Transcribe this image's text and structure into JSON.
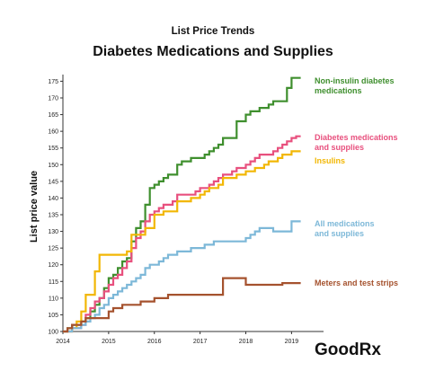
{
  "chart_data": {
    "type": "line",
    "subtitle": "List Price Trends",
    "title": "Diabetes Medications and Supplies",
    "ylabel": "List price value",
    "xlabel": "",
    "xlim": [
      2014.0,
      2019.7
    ],
    "ylim": [
      100,
      177
    ],
    "x_ticks": [
      "2014",
      "2015",
      "2016",
      "2017",
      "2018",
      "2019"
    ],
    "y_ticks": [
      "100",
      "105",
      "110",
      "115",
      "120",
      "125",
      "130",
      "135",
      "140",
      "145",
      "150",
      "155",
      "160",
      "165",
      "170",
      "175"
    ],
    "grid": false,
    "legend": "right-side inline labels",
    "series": [
      {
        "name": "Non-insulin diabetes\nmedications",
        "color": "#3f8f2e",
        "x": [
          2014.0,
          2014.1,
          2014.2,
          2014.3,
          2014.4,
          2014.5,
          2014.6,
          2014.7,
          2014.8,
          2014.9,
          2015.0,
          2015.1,
          2015.2,
          2015.3,
          2015.4,
          2015.5,
          2015.6,
          2015.7,
          2015.8,
          2015.9,
          2016.0,
          2016.1,
          2016.2,
          2016.3,
          2016.4,
          2016.5,
          2016.6,
          2016.7,
          2016.8,
          2016.9,
          2017.0,
          2017.1,
          2017.2,
          2017.3,
          2017.4,
          2017.5,
          2017.6,
          2017.7,
          2017.8,
          2017.9,
          2018.0,
          2018.1,
          2018.2,
          2018.3,
          2018.4,
          2018.5,
          2018.6,
          2018.7,
          2018.8,
          2018.9,
          2019.0,
          2019.1,
          2019.2
        ],
        "values": [
          100.0,
          101.0,
          102.0,
          102.0,
          103.0,
          104.0,
          106.0,
          108.0,
          110.0,
          113.0,
          116.0,
          117.0,
          119.0,
          121.0,
          122.0,
          127.0,
          131.0,
          133.0,
          138.0,
          143.0,
          144.0,
          145.0,
          146.0,
          147.0,
          147.0,
          150.0,
          151.0,
          151.0,
          152.0,
          152.0,
          152.0,
          153.0,
          154.0,
          155.0,
          156.0,
          158.0,
          158.0,
          158.0,
          163.0,
          163.0,
          165.0,
          166.0,
          166.0,
          167.0,
          167.0,
          168.0,
          169.0,
          169.0,
          169.0,
          173.0,
          176.0,
          176.0,
          176.0
        ]
      },
      {
        "name": "Diabetes medications\nand supplies",
        "color": "#e8507e",
        "x": [
          2014.0,
          2014.1,
          2014.2,
          2014.3,
          2014.4,
          2014.5,
          2014.6,
          2014.7,
          2014.8,
          2014.9,
          2015.0,
          2015.1,
          2015.2,
          2015.3,
          2015.4,
          2015.5,
          2015.6,
          2015.7,
          2015.8,
          2015.9,
          2016.0,
          2016.1,
          2016.2,
          2016.3,
          2016.4,
          2016.5,
          2016.6,
          2016.7,
          2016.8,
          2016.9,
          2017.0,
          2017.1,
          2017.2,
          2017.3,
          2017.4,
          2017.5,
          2017.6,
          2017.7,
          2017.8,
          2017.9,
          2018.0,
          2018.1,
          2018.2,
          2018.3,
          2018.4,
          2018.5,
          2018.6,
          2018.7,
          2018.8,
          2018.9,
          2019.0,
          2019.1,
          2019.2
        ],
        "values": [
          100.0,
          100.0,
          101.0,
          101.0,
          102.0,
          105.0,
          107.0,
          109.0,
          110.0,
          112.0,
          114.0,
          116.0,
          117.0,
          119.0,
          121.0,
          125.0,
          128.0,
          130.0,
          133.0,
          135.0,
          136.0,
          137.0,
          138.0,
          138.0,
          139.0,
          141.0,
          141.0,
          141.0,
          141.0,
          142.0,
          143.0,
          143.0,
          144.0,
          145.0,
          146.0,
          147.0,
          147.0,
          148.0,
          149.0,
          149.0,
          150.0,
          151.0,
          152.0,
          153.0,
          153.0,
          153.0,
          154.0,
          155.0,
          156.0,
          157.0,
          158.0,
          158.5,
          158.5
        ]
      },
      {
        "name": "Insulins",
        "color": "#f2b705",
        "x": [
          2014.0,
          2014.1,
          2014.2,
          2014.3,
          2014.4,
          2014.5,
          2014.6,
          2014.7,
          2014.8,
          2014.9,
          2015.0,
          2015.1,
          2015.2,
          2015.3,
          2015.4,
          2015.5,
          2015.6,
          2015.7,
          2015.8,
          2015.9,
          2016.0,
          2016.1,
          2016.2,
          2016.3,
          2016.4,
          2016.5,
          2016.6,
          2016.7,
          2016.8,
          2016.9,
          2017.0,
          2017.1,
          2017.2,
          2017.3,
          2017.4,
          2017.5,
          2017.6,
          2017.7,
          2017.8,
          2017.9,
          2018.0,
          2018.1,
          2018.2,
          2018.3,
          2018.4,
          2018.5,
          2018.6,
          2018.7,
          2018.8,
          2018.9,
          2019.0,
          2019.1,
          2019.2
        ],
        "values": [
          100.0,
          100.0,
          101.0,
          103.0,
          106.0,
          111.0,
          111.0,
          118.0,
          123.0,
          123.0,
          123.0,
          123.0,
          123.0,
          123.0,
          124.0,
          129.0,
          129.0,
          129.0,
          131.0,
          131.0,
          135.0,
          135.0,
          136.0,
          136.0,
          136.0,
          139.0,
          139.0,
          139.0,
          140.0,
          140.0,
          141.0,
          142.0,
          143.0,
          143.0,
          144.0,
          146.0,
          146.0,
          146.0,
          147.0,
          147.0,
          148.0,
          148.0,
          149.0,
          149.0,
          150.0,
          151.0,
          151.0,
          152.0,
          153.0,
          153.0,
          154.0,
          154.0,
          154.0
        ]
      },
      {
        "name": "All medications\nand supplies",
        "color": "#7db8d8",
        "x": [
          2014.0,
          2014.1,
          2014.2,
          2014.3,
          2014.4,
          2014.5,
          2014.6,
          2014.7,
          2014.8,
          2014.9,
          2015.0,
          2015.1,
          2015.2,
          2015.3,
          2015.4,
          2015.5,
          2015.6,
          2015.7,
          2015.8,
          2015.9,
          2016.0,
          2016.1,
          2016.2,
          2016.3,
          2016.4,
          2016.5,
          2016.6,
          2016.7,
          2016.8,
          2016.9,
          2017.0,
          2017.1,
          2017.2,
          2017.3,
          2017.4,
          2017.5,
          2017.6,
          2017.7,
          2017.8,
          2017.9,
          2018.0,
          2018.1,
          2018.2,
          2018.3,
          2018.4,
          2018.5,
          2018.6,
          2018.7,
          2018.8,
          2018.9,
          2019.0,
          2019.1,
          2019.2
        ],
        "values": [
          100.0,
          100.0,
          101.0,
          101.0,
          102.0,
          103.0,
          104.0,
          105.0,
          107.0,
          108.0,
          110.0,
          111.0,
          112.0,
          113.0,
          114.0,
          115.0,
          116.0,
          117.0,
          119.0,
          120.0,
          120.0,
          121.0,
          122.0,
          123.0,
          123.0,
          124.0,
          124.0,
          124.0,
          125.0,
          125.0,
          125.0,
          126.0,
          126.0,
          127.0,
          127.0,
          127.0,
          127.0,
          127.0,
          127.0,
          127.0,
          128.0,
          129.0,
          130.0,
          131.0,
          131.0,
          131.0,
          130.0,
          130.0,
          130.0,
          130.0,
          133.0,
          133.0,
          133.0
        ]
      },
      {
        "name": "Meters and test strips",
        "color": "#a5522e",
        "x": [
          2014.0,
          2014.1,
          2014.2,
          2014.3,
          2014.4,
          2014.5,
          2014.6,
          2014.7,
          2014.8,
          2014.9,
          2015.0,
          2015.1,
          2015.2,
          2015.3,
          2015.4,
          2015.5,
          2015.6,
          2015.7,
          2015.8,
          2015.9,
          2016.0,
          2016.1,
          2016.2,
          2016.3,
          2016.4,
          2016.5,
          2016.6,
          2016.7,
          2016.8,
          2016.9,
          2017.0,
          2017.1,
          2017.2,
          2017.3,
          2017.4,
          2017.5,
          2017.6,
          2017.7,
          2017.8,
          2017.9,
          2018.0,
          2018.1,
          2018.2,
          2018.3,
          2018.4,
          2018.5,
          2018.6,
          2018.7,
          2018.8,
          2018.9,
          2019.0,
          2019.1,
          2019.2
        ],
        "values": [
          100.0,
          101.0,
          102.0,
          102.0,
          103.0,
          104.0,
          104.0,
          104.0,
          104.0,
          104.0,
          106.0,
          107.0,
          107.0,
          108.0,
          108.0,
          108.0,
          108.0,
          109.0,
          109.0,
          109.0,
          110.0,
          110.0,
          110.0,
          111.0,
          111.0,
          111.0,
          111.0,
          111.0,
          111.0,
          111.0,
          111.0,
          111.0,
          111.0,
          111.0,
          111.0,
          116.0,
          116.0,
          116.0,
          116.0,
          116.0,
          114.0,
          114.0,
          114.0,
          114.0,
          114.0,
          114.0,
          114.0,
          114.0,
          114.5,
          114.5,
          114.5,
          114.5,
          114.5
        ]
      }
    ]
  },
  "branding": {
    "logo_text": "GoodRx"
  }
}
